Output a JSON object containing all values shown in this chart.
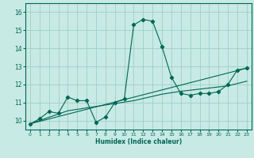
{
  "xlabel": "Humidex (Indice chaleur)",
  "background_color": "#c8eae4",
  "grid_color": "#9ecfc7",
  "line_color": "#006655",
  "xlim": [
    -0.5,
    23.5
  ],
  "ylim": [
    9.5,
    16.5
  ],
  "xticks": [
    0,
    1,
    2,
    3,
    4,
    5,
    6,
    7,
    8,
    9,
    10,
    11,
    12,
    13,
    14,
    15,
    16,
    17,
    18,
    19,
    20,
    21,
    22,
    23
  ],
  "yticks": [
    10,
    11,
    12,
    13,
    14,
    15,
    16
  ],
  "line1_x": [
    0,
    1,
    2,
    3,
    4,
    5,
    6,
    7,
    8,
    9,
    10,
    11,
    12,
    13,
    14,
    15,
    16,
    17,
    18,
    19,
    20,
    21,
    22,
    23
  ],
  "line1_y": [
    9.8,
    10.1,
    10.5,
    10.4,
    11.3,
    11.1,
    11.1,
    9.9,
    10.2,
    11.0,
    11.2,
    15.3,
    15.6,
    15.5,
    14.1,
    12.4,
    11.5,
    11.4,
    11.5,
    11.5,
    11.6,
    12.0,
    12.8,
    12.9
  ],
  "line2_x": [
    0,
    1,
    2,
    3,
    4,
    5,
    6,
    7,
    8,
    9,
    10,
    11,
    12,
    13,
    14,
    15,
    16,
    17,
    18,
    19,
    20,
    21,
    22,
    23
  ],
  "line2_y": [
    9.82,
    10.0,
    10.18,
    10.36,
    10.54,
    10.62,
    10.7,
    10.78,
    10.86,
    10.94,
    11.02,
    11.1,
    11.22,
    11.34,
    11.46,
    11.54,
    11.62,
    11.68,
    11.74,
    11.8,
    11.86,
    11.92,
    12.05,
    12.18
  ],
  "line3_x": [
    0,
    23
  ],
  "line3_y": [
    9.82,
    12.9
  ]
}
